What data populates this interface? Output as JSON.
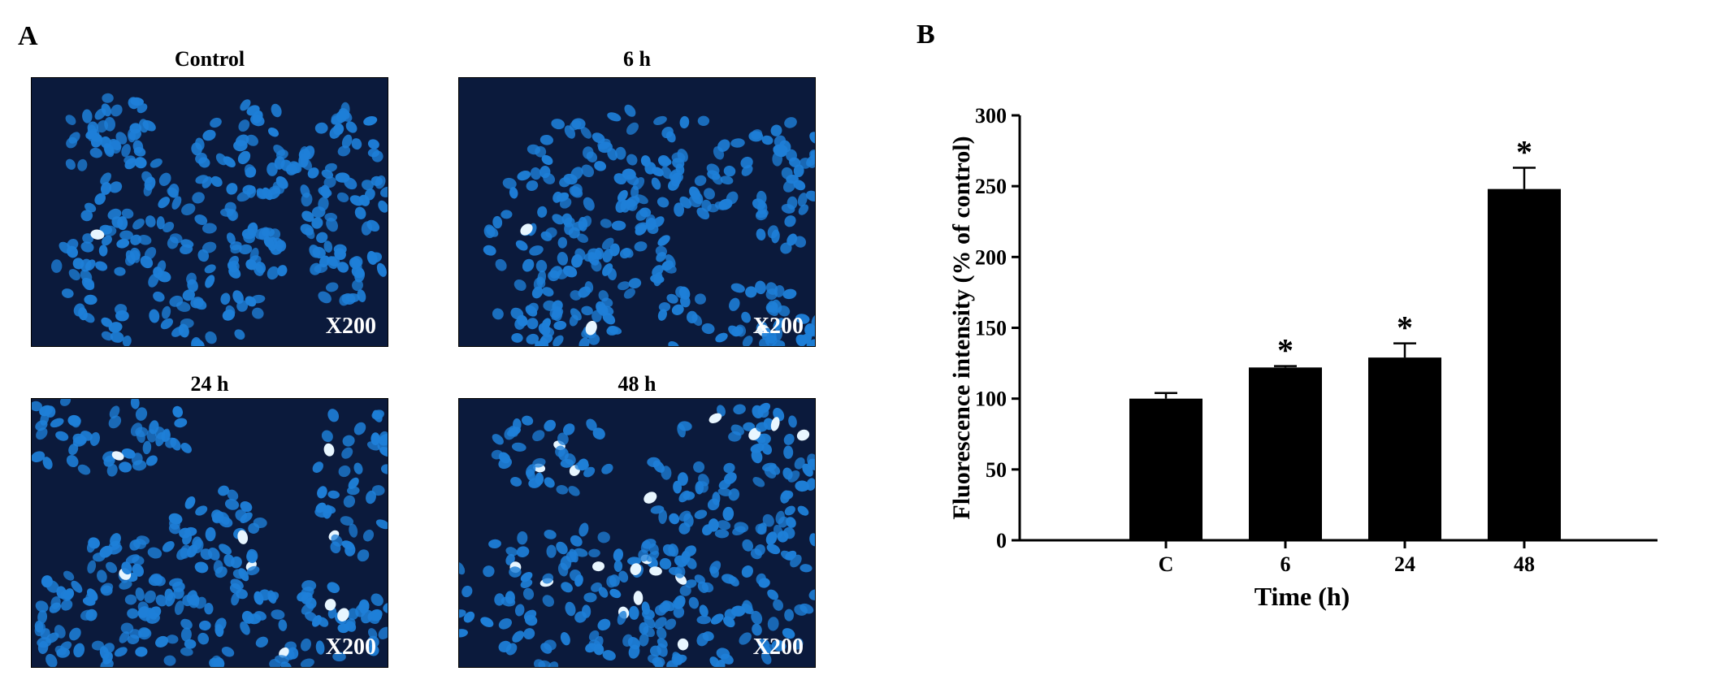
{
  "panel_a": {
    "letter": "A",
    "images": [
      {
        "title": "Control",
        "magnification": "X200",
        "bright_cells": 1
      },
      {
        "title": "6 h",
        "magnification": "X200",
        "bright_cells": 3
      },
      {
        "title": "24 h",
        "magnification": "X200",
        "bright_cells": 9
      },
      {
        "title": "48 h",
        "magnification": "X200",
        "bright_cells": 18
      }
    ],
    "colors": {
      "background": "#0b1a3c",
      "nucleus": "#1e7fd8",
      "bright_nucleus": "#e8f6ff"
    }
  },
  "panel_b": {
    "letter": "B"
  },
  "chart_data": {
    "type": "bar",
    "categories": [
      "C",
      "6",
      "24",
      "48"
    ],
    "values": [
      100,
      122,
      129,
      248
    ],
    "errors": [
      4,
      1,
      10,
      15
    ],
    "significance": [
      "",
      "*",
      "*",
      "*"
    ],
    "xlabel": "Time (h)",
    "ylabel": "Fluorescence intensity (% of control)",
    "ylim": [
      0,
      300
    ],
    "yticks": [
      0,
      50,
      100,
      150,
      200,
      250,
      300
    ],
    "grid": false,
    "bar_color": "#000000"
  }
}
